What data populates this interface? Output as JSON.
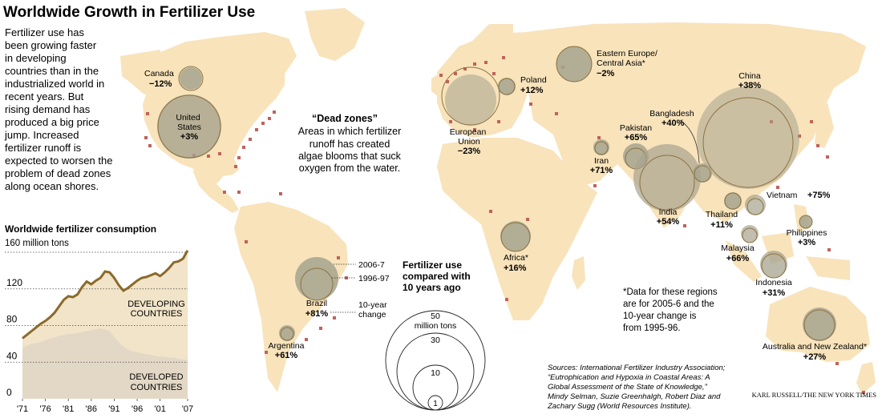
{
  "title": "Worldwide Growth in Fertilizer Use",
  "intro_lines": [
    "Fertilizer use has",
    "been growing faster",
    "in developing",
    "countries than in the",
    "industrialized world in",
    "recent years. But",
    "rising demand has",
    "produced a big price",
    "jump. Increased",
    "fertilizer runoff is",
    "expected to worsen the",
    "problem of dead zones",
    "along ocean shores."
  ],
  "dead_zones": {
    "heading": "“Dead zones”",
    "lines": [
      "Areas in which fertilizer",
      "runoff has created",
      "algae blooms that suck",
      "oxygen from the water."
    ]
  },
  "regions": [
    {
      "name": "Canada",
      "change": "−12%"
    },
    {
      "name": "United States",
      "change": "+3%"
    },
    {
      "name": "Brazil",
      "change": "+81%"
    },
    {
      "name": "Argentina",
      "change": "+61%"
    },
    {
      "name": "European Union",
      "change": "−23%"
    },
    {
      "name": "Poland",
      "change": "+12%"
    },
    {
      "name": "Eastern Europe/ Central Asia*",
      "change": "−2%"
    },
    {
      "name": "Africa*",
      "change": "+16%"
    },
    {
      "name": "Iran",
      "change": "+71%"
    },
    {
      "name": "Pakistan",
      "change": "+65%"
    },
    {
      "name": "India",
      "change": "+54%"
    },
    {
      "name": "Bangladesh",
      "change": "+40%"
    },
    {
      "name": "China",
      "change": "+38%"
    },
    {
      "name": "Thailand",
      "change": "+11%"
    },
    {
      "name": "Vietnam",
      "change": "+75%"
    },
    {
      "name": "Philippines",
      "change": "+3%"
    },
    {
      "name": "Malaysia",
      "change": "+66%"
    },
    {
      "name": "Indonesia",
      "change": "+31%"
    },
    {
      "name": "Australia and New Zealand*",
      "change": "+27%"
    }
  ],
  "brazil_key": {
    "recent": "2006-7",
    "earlier": "1996-97",
    "change_lines": [
      "10-year",
      "change"
    ]
  },
  "size_legend": {
    "heading_lines": [
      "Fertilizer use",
      "compared with",
      "10 years ago"
    ],
    "circles": [
      {
        "label": "50",
        "unit": "million tons"
      },
      {
        "label": "30"
      },
      {
        "label": "10"
      },
      {
        "label": "1"
      }
    ]
  },
  "footnote_lines": [
    "*Data for these regions",
    "are for 2005-6 and the",
    "10-year change is",
    "from 1995-96."
  ],
  "sources_lines": [
    "Sources: International Fertilizer Industry Association;",
    "“Eutrophication and Hypoxia in Coastal Areas: A",
    "Global Assessment of the State of Knowledge,”",
    "Mindy Selman, Suzie Greenhalgh, Robert Diaz and",
    "Zachary Sugg (World Resources Institute)."
  ],
  "credit": "KARL RUSSELL/THE NEW YORK TIMES",
  "colors": {
    "land": "#f8e3bb",
    "circle_recent": "#a6a38e",
    "circle_earlier": "#8c7240",
    "dead_zone": "#c0625a",
    "line": "#8a6a2c",
    "developing": "#f1e4c8",
    "developed": "#e3d8c6"
  },
  "chart_data": {
    "type": "area",
    "title": "Worldwide fertilizer consumption",
    "ylabel": "160 million tons",
    "ylim": [
      0,
      160
    ],
    "yticks": [
      0,
      40,
      80,
      120
    ],
    "xticks": [
      "'71",
      "'76",
      "'81",
      "'86",
      "'91",
      "'96",
      "'01",
      "'07"
    ],
    "x": [
      1971,
      1972,
      1973,
      1974,
      1975,
      1976,
      1977,
      1978,
      1979,
      1980,
      1981,
      1982,
      1983,
      1984,
      1985,
      1986,
      1987,
      1988,
      1989,
      1990,
      1991,
      1992,
      1993,
      1994,
      1995,
      1996,
      1997,
      1998,
      1999,
      2000,
      2001,
      2002,
      2003,
      2004,
      2005,
      2006,
      2007
    ],
    "series": [
      {
        "name": "DEVELOPED COUNTRIES",
        "values": [
          56,
          58,
          60,
          61,
          62,
          64,
          66,
          67,
          69,
          70,
          71,
          71,
          72,
          73,
          74,
          75,
          76,
          77,
          76,
          74,
          68,
          62,
          57,
          54,
          52,
          51,
          50,
          49,
          48,
          47,
          46,
          46,
          45,
          45,
          44,
          43,
          43
        ]
      },
      {
        "name": "total",
        "values": [
          66,
          70,
          74,
          78,
          82,
          85,
          89,
          94,
          101,
          108,
          112,
          111,
          114,
          122,
          128,
          125,
          129,
          132,
          139,
          138,
          132,
          124,
          118,
          121,
          125,
          129,
          132,
          133,
          135,
          137,
          134,
          138,
          143,
          149,
          150,
          153,
          162
        ]
      }
    ],
    "area_labels": [
      "DEVELOPING COUNTRIES",
      "DEVELOPED COUNTRIES"
    ]
  }
}
